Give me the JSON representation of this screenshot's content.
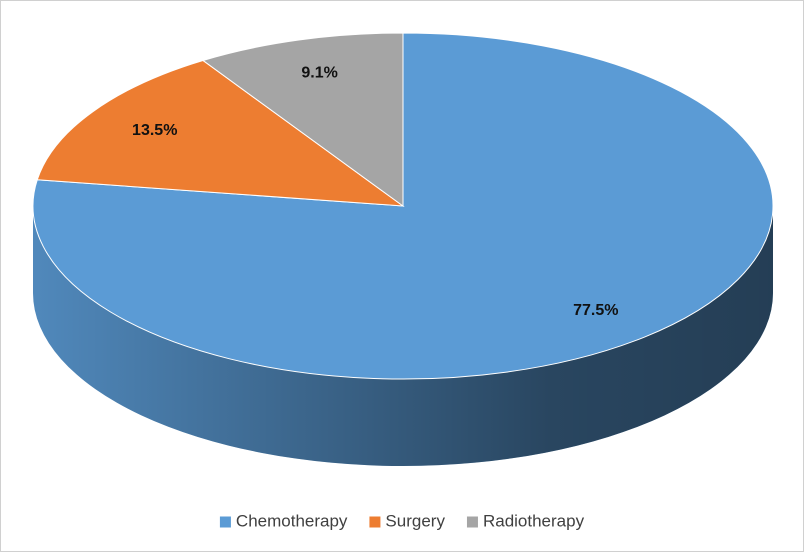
{
  "chart_data": {
    "type": "pie",
    "categories": [
      "Chemotherapy",
      "Surgery",
      "Radiotherapy"
    ],
    "values": [
      77.5,
      13.5,
      9.1
    ],
    "value_labels": [
      "77.5%",
      "13.5%",
      "9.1%"
    ],
    "colors": [
      "#5b9bd5",
      "#ed7d31",
      "#a5a5a5"
    ],
    "legend": "bottom"
  }
}
